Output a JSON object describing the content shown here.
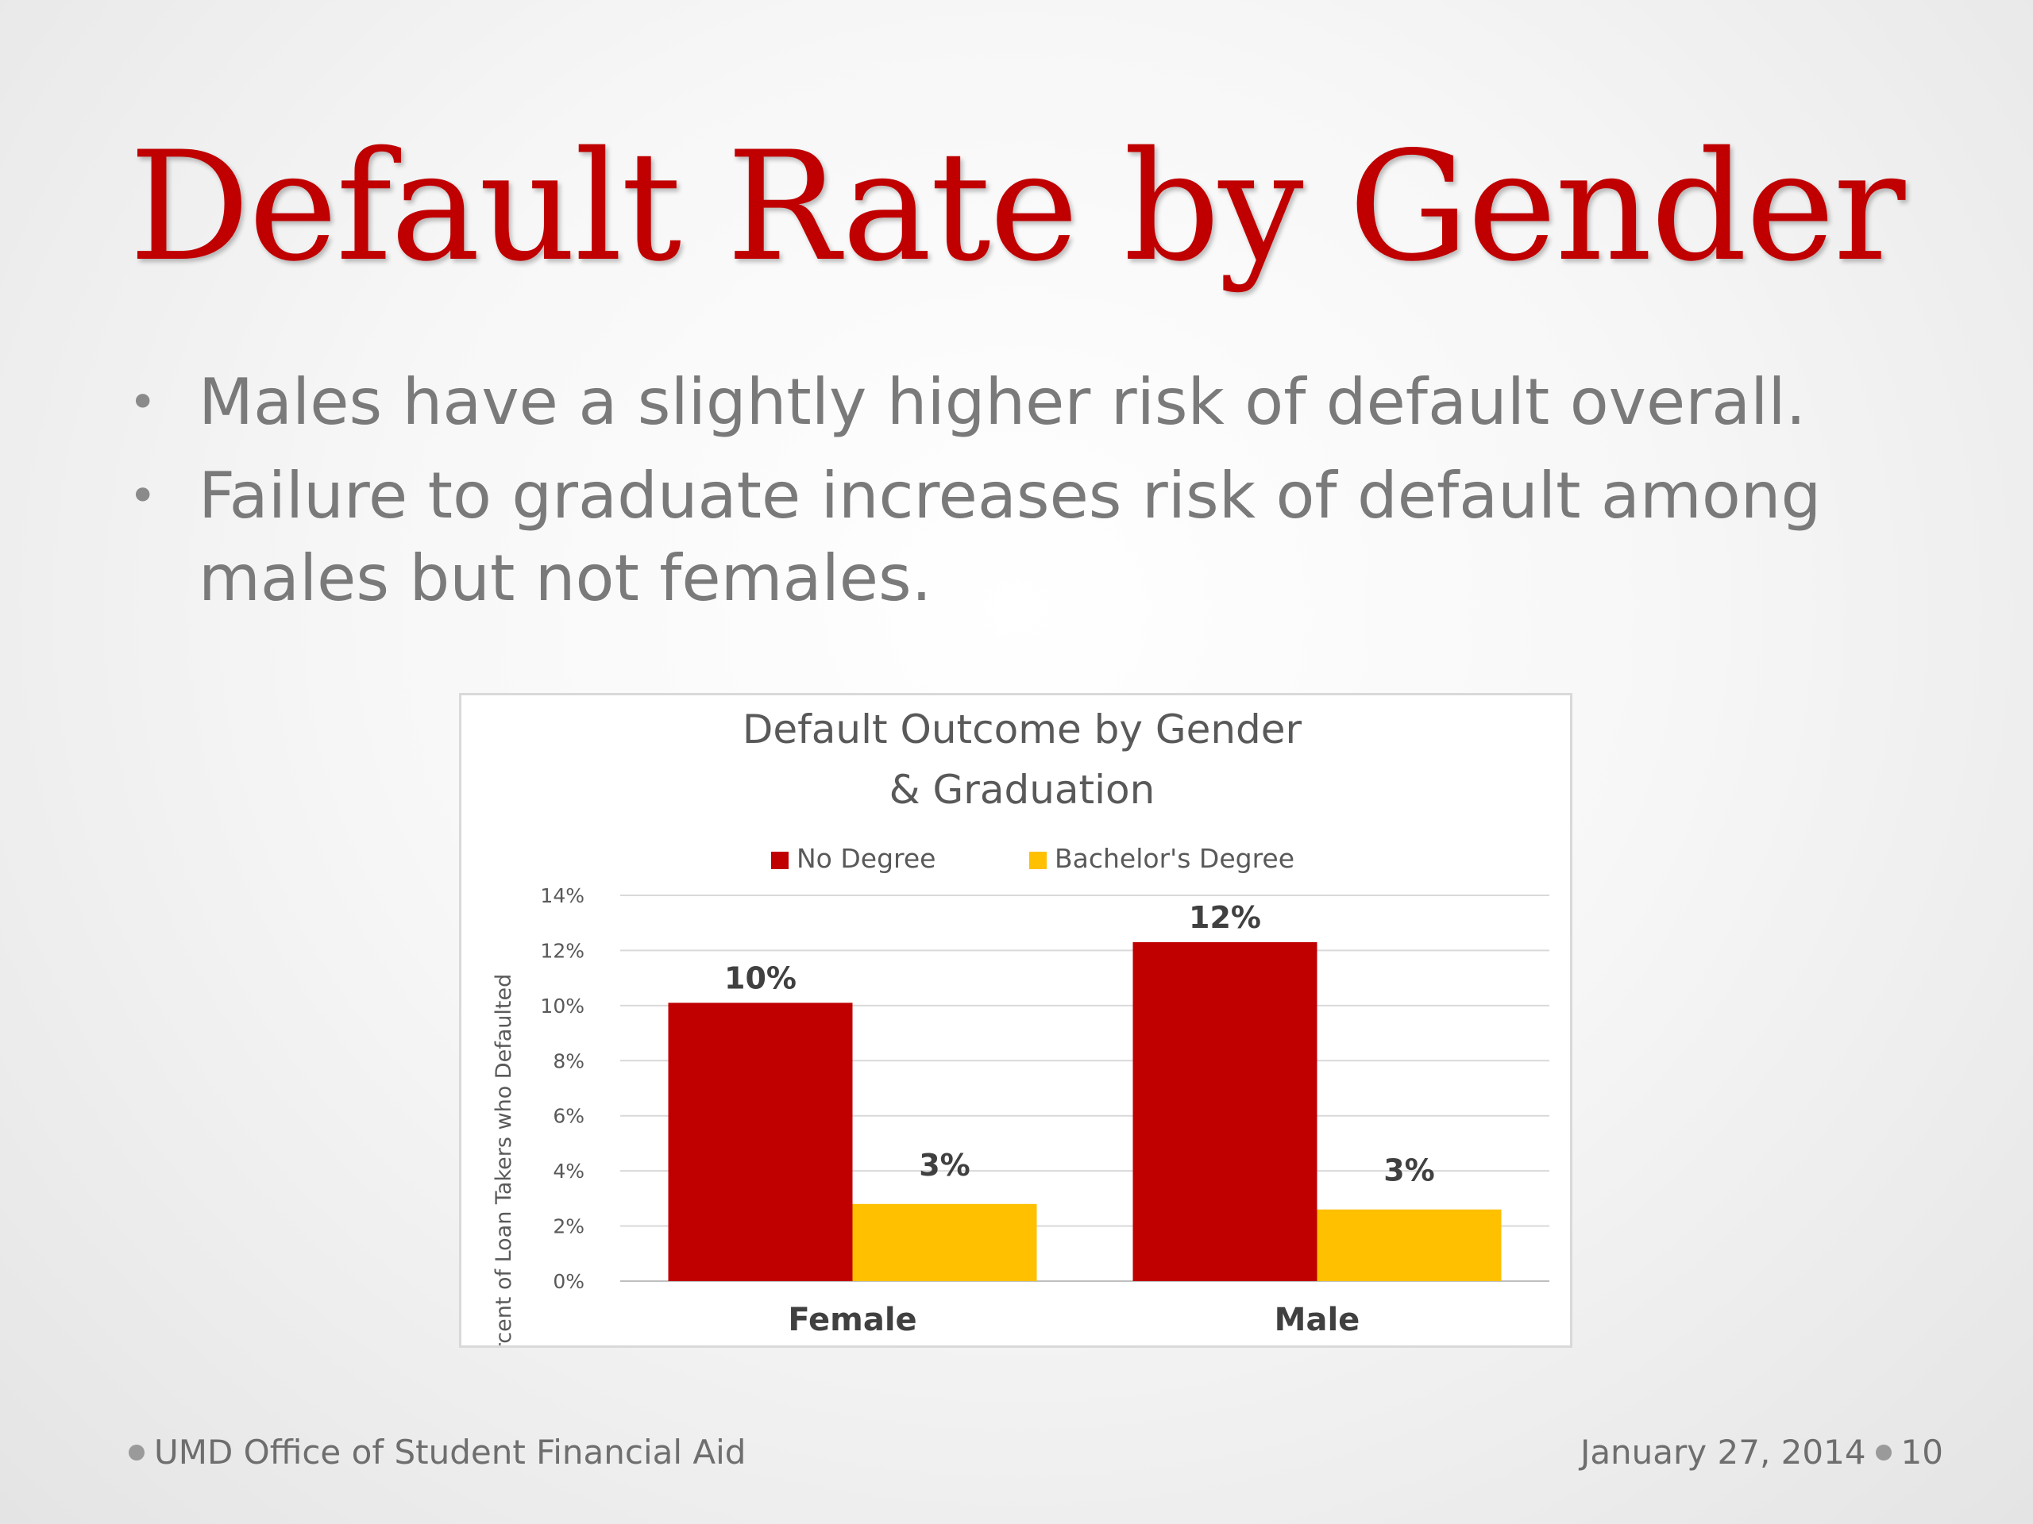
{
  "slide": {
    "title": "Default Rate by Gender",
    "bullets": [
      "Males have a slightly higher risk of default overall.",
      "Failure to graduate increases risk of default among males but not females."
    ],
    "footer_left": "UMD Office of Student Financial Aid",
    "footer_date": "January 27, 2014",
    "page_number": "10"
  },
  "chart_data": {
    "type": "bar",
    "title_lines": [
      "Default Outcome by Gender",
      "& Graduation"
    ],
    "ylabel": "Percent of Loan Takers who Defaulted",
    "categories": [
      "Female",
      "Male"
    ],
    "ylim": [
      0,
      14
    ],
    "yticks": [
      0,
      2,
      4,
      6,
      8,
      10,
      12,
      14
    ],
    "ytick_labels": [
      "0%",
      "2%",
      "4%",
      "6%",
      "8%",
      "10%",
      "12%",
      "14%"
    ],
    "grid": true,
    "legend_position": "top",
    "series": [
      {
        "name": "No Degree",
        "color": "#c00000",
        "values": [
          10.1,
          12.3
        ],
        "labels": [
          "10%",
          "12%"
        ]
      },
      {
        "name": "Bachelor's Degree",
        "color": "#ffc000",
        "values": [
          2.8,
          2.6
        ],
        "labels": [
          "3%",
          "3%"
        ]
      }
    ]
  }
}
